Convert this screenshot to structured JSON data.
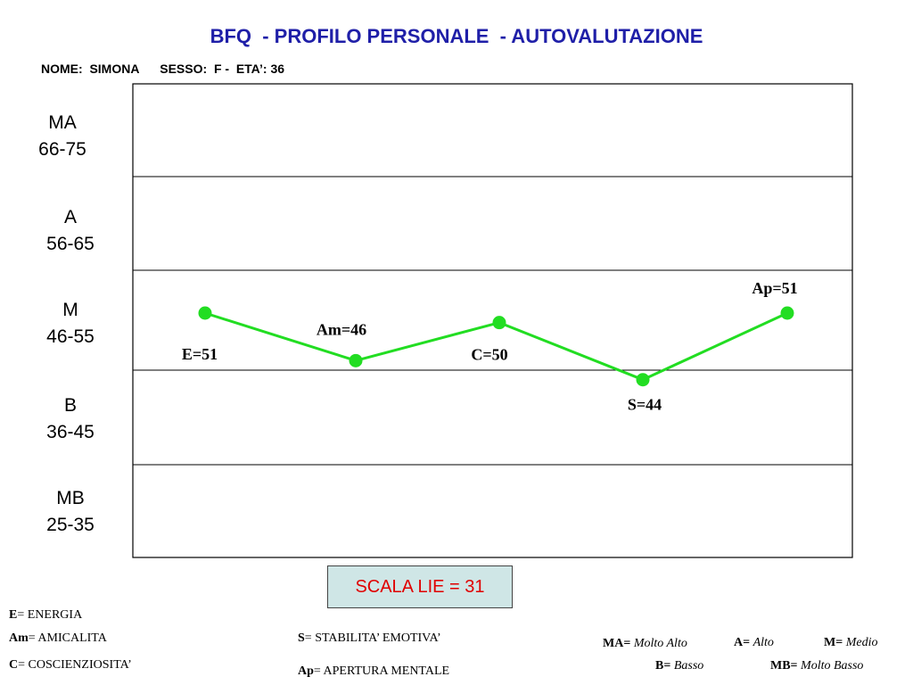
{
  "header": {
    "title": "BFQ  - PROFILO PERSONALE  - AUTOVALUTAZIONE",
    "info": "NOME:  SIMONA      SESSO:  F -  ETA’: 36"
  },
  "bands": [
    {
      "code": "MA",
      "range": "66-75"
    },
    {
      "code": "A",
      "range": "56-65"
    },
    {
      "code": "M",
      "range": "46-55"
    },
    {
      "code": "B",
      "range": "36-45"
    },
    {
      "code": "MB",
      "range": "25-35"
    }
  ],
  "chart_data": {
    "type": "line",
    "categories": [
      "E",
      "Am",
      "C",
      "S",
      "Ap"
    ],
    "values": [
      51,
      46,
      50,
      44,
      51
    ],
    "point_labels": [
      "E=51",
      "Am=46",
      "C=50",
      "S=44",
      "Ap=51"
    ],
    "ylim": [
      25,
      75
    ],
    "line_color": "#22dd22",
    "grid": true
  },
  "scala_lie": "SCALA LIE = 31",
  "legend": {
    "left": [
      {
        "abbr": "E",
        "text": "= ENERGIA"
      },
      {
        "abbr": "Am",
        "text": "= AMICALITA"
      },
      {
        "abbr": "C",
        "text": "= COSCIENZIOSITA’"
      }
    ],
    "middle": [
      {
        "abbr": "S",
        "text": "= STABILITA’ EMOTIVA’"
      },
      {
        "abbr": "Ap",
        "text": "= APERTURA MENTALE"
      }
    ],
    "levels": [
      {
        "abbr": "MA=",
        "text": "Molto Alto"
      },
      {
        "abbr": "A=",
        "text": "Alto"
      },
      {
        "abbr": "M=",
        "text": "Medio"
      },
      {
        "abbr": "B=",
        "text": "Basso"
      },
      {
        "abbr": "MB=",
        "text": "Molto Basso"
      }
    ]
  }
}
